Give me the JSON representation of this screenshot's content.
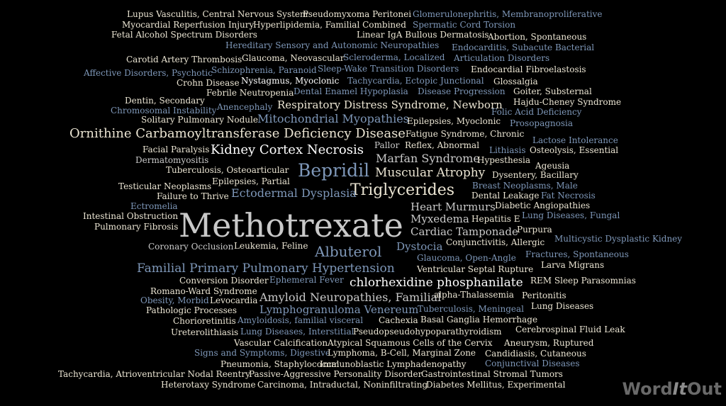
{
  "colors": {
    "background": "#000000",
    "cream": "#ebe5d3",
    "white": "#ffffff",
    "blue": "#7e97b8",
    "grey": "#c9c9c9"
  },
  "logo": {
    "part1": "Word",
    "part2": "It",
    "part3": "Out"
  },
  "words": [
    {
      "t": "Lupus Vasculitis, Central Nervous System",
      "c": "cream"
    },
    {
      "t": "Pseudomyxoma Peritonei",
      "c": "cream"
    },
    {
      "t": "Glomerulonephritis, Membranoproliferative",
      "c": "blue"
    },
    {
      "t": "Myocardial Reperfusion Injury",
      "c": "cream"
    },
    {
      "t": "Hyperlipidemia, Familial Combined",
      "c": "cream"
    },
    {
      "t": "Spermatic Cord Torsion",
      "c": "blue"
    },
    {
      "t": "Fetal Alcohol Spectrum Disorders",
      "c": "cream"
    },
    {
      "t": "Linear IgA Bullous Dermatosis",
      "c": "cream"
    },
    {
      "t": "Abortion, Spontaneous",
      "c": "cream"
    },
    {
      "t": "Hereditary Sensory and Autonomic Neuropathies",
      "c": "blue"
    },
    {
      "t": "Endocarditis, Subacute Bacterial",
      "c": "blue"
    },
    {
      "t": "Carotid Artery Thrombosis",
      "c": "cream"
    },
    {
      "t": "Glaucoma, Neovascular",
      "c": "cream"
    },
    {
      "t": "Scleroderma, Localized",
      "c": "blue"
    },
    {
      "t": "Articulation Disorders",
      "c": "blue"
    },
    {
      "t": "Affective Disorders, Psychotic",
      "c": "blue"
    },
    {
      "t": "Schizophrenia, Paranoid",
      "c": "blue"
    },
    {
      "t": "Sleep-Wake Transition Disorders",
      "c": "blue"
    },
    {
      "t": "Endocardial Fibroelastosis",
      "c": "cream"
    },
    {
      "t": "Crohn Disease",
      "c": "cream"
    },
    {
      "t": "Nystagmus, Myoclonic",
      "c": "white"
    },
    {
      "t": "Tachycardia, Ectopic Junctional",
      "c": "blue"
    },
    {
      "t": "Glossalgia",
      "c": "cream"
    },
    {
      "t": "Febrile Neutropenia",
      "c": "cream"
    },
    {
      "t": "Dental Enamel Hypoplasia",
      "c": "blue"
    },
    {
      "t": "Disease Progression",
      "c": "blue"
    },
    {
      "t": "Goiter, Substernal",
      "c": "cream"
    },
    {
      "t": "Dentin, Secondary",
      "c": "cream"
    },
    {
      "t": "Hajdu-Cheney Syndrome",
      "c": "cream"
    },
    {
      "t": "Anencephaly",
      "c": "blue"
    },
    {
      "t": "Respiratory Distress Syndrome, Newborn",
      "c": "cream"
    },
    {
      "t": "Chromosomal Instability",
      "c": "blue"
    },
    {
      "t": "Folic Acid Deficiency",
      "c": "blue"
    },
    {
      "t": "Mitochondrial Myopathies",
      "c": "blue"
    },
    {
      "t": "Solitary Pulmonary Nodule",
      "c": "cream"
    },
    {
      "t": "Epilepsies, Myoclonic",
      "c": "cream"
    },
    {
      "t": "Prosopagnosia",
      "c": "blue"
    },
    {
      "t": "Ornithine Carbamoyltransferase Deficiency Disease",
      "c": "cream"
    },
    {
      "t": "Fatigue Syndrome, Chronic",
      "c": "cream"
    },
    {
      "t": "Lactose Intolerance",
      "c": "blue"
    },
    {
      "t": "Pallor",
      "c": "grey"
    },
    {
      "t": "Reflex, Abnormal",
      "c": "cream"
    },
    {
      "t": "Facial Paralysis",
      "c": "cream"
    },
    {
      "t": "Kidney Cortex Necrosis",
      "c": "white"
    },
    {
      "t": "Lithiasis",
      "c": "blue"
    },
    {
      "t": "Osteolysis, Essential",
      "c": "cream"
    },
    {
      "t": "Dermatomyositis",
      "c": "grey"
    },
    {
      "t": "Marfan Syndrome",
      "c": "grey"
    },
    {
      "t": "Hypesthesia",
      "c": "cream"
    },
    {
      "t": "Ageusia",
      "c": "cream"
    },
    {
      "t": "Tuberculosis, Osteoarticular",
      "c": "cream"
    },
    {
      "t": "Bepridil",
      "c": "blue"
    },
    {
      "t": "Muscular Atrophy",
      "c": "cream"
    },
    {
      "t": "Dysentery, Bacillary",
      "c": "cream"
    },
    {
      "t": "Epilepsies, Partial",
      "c": "cream"
    },
    {
      "t": "Testicular Neoplasms",
      "c": "cream"
    },
    {
      "t": "Breast Neoplasms, Male",
      "c": "blue"
    },
    {
      "t": "Triglycerides",
      "c": "cream"
    },
    {
      "t": "Failure to Thrive",
      "c": "cream"
    },
    {
      "t": "Ectodermal Dysplasia",
      "c": "blue"
    },
    {
      "t": "Dental Leakage",
      "c": "cream"
    },
    {
      "t": "Fat Necrosis",
      "c": "blue"
    },
    {
      "t": "Ectromelia",
      "c": "blue"
    },
    {
      "t": "Diabetic Angiopathies",
      "c": "cream"
    },
    {
      "t": "Heart Murmurs",
      "c": "grey"
    },
    {
      "t": "Intestinal Obstruction",
      "c": "cream"
    },
    {
      "t": "Lung Diseases, Fungal",
      "c": "blue"
    },
    {
      "t": "Methotrexate",
      "c": "grey"
    },
    {
      "t": "Myxedema",
      "c": "grey"
    },
    {
      "t": "Hepatitis E",
      "c": "cream"
    },
    {
      "t": "Pulmonary Fibrosis",
      "c": "cream"
    },
    {
      "t": "Purpura",
      "c": "cream"
    },
    {
      "t": "Cardiac Tamponade",
      "c": "grey"
    },
    {
      "t": "Multicystic Dysplastic Kidney",
      "c": "blue"
    },
    {
      "t": "Conjunctivitis, Allergic",
      "c": "cream"
    },
    {
      "t": "Coronary Occlusion",
      "c": "grey"
    },
    {
      "t": "Leukemia, Feline",
      "c": "cream"
    },
    {
      "t": "Dystocia",
      "c": "blue"
    },
    {
      "t": "Albuterol",
      "c": "blue"
    },
    {
      "t": "Fractures, Spontaneous",
      "c": "blue"
    },
    {
      "t": "Glaucoma, Open-Angle",
      "c": "blue"
    },
    {
      "t": "Larva Migrans",
      "c": "cream"
    },
    {
      "t": "Familial Primary Pulmonary Hypertension",
      "c": "blue"
    },
    {
      "t": "Ventricular Septal Rupture",
      "c": "cream"
    },
    {
      "t": "Conversion Disorder",
      "c": "cream"
    },
    {
      "t": "Ephemeral Fever",
      "c": "blue"
    },
    {
      "t": "chlorhexidine phosphanilate",
      "c": "white"
    },
    {
      "t": "REM Sleep Parasomnias",
      "c": "cream"
    },
    {
      "t": "Romano-Ward Syndrome",
      "c": "cream"
    },
    {
      "t": "alpha-Thalassemia",
      "c": "cream"
    },
    {
      "t": "Peritonitis",
      "c": "cream"
    },
    {
      "t": "Obesity, Morbid",
      "c": "blue"
    },
    {
      "t": "Levocardia",
      "c": "cream"
    },
    {
      "t": "Amyloid Neuropathies, Familial",
      "c": "grey"
    },
    {
      "t": "Lung Diseases",
      "c": "cream"
    },
    {
      "t": "Pathologic Processes",
      "c": "cream"
    },
    {
      "t": "Lymphogranuloma Venereum",
      "c": "blue"
    },
    {
      "t": "Tuberculosis, Meningeal",
      "c": "blue"
    },
    {
      "t": "Chorioretinitis",
      "c": "cream"
    },
    {
      "t": "Amyloidosis, familial visceral",
      "c": "blue"
    },
    {
      "t": "Cachexia",
      "c": "cream"
    },
    {
      "t": "Basal Ganglia Hemorrhage",
      "c": "cream"
    },
    {
      "t": "Ureterolithiasis",
      "c": "cream"
    },
    {
      "t": "Lung Diseases, Interstitial",
      "c": "blue"
    },
    {
      "t": "Pseudopseudohypoparathyroidism",
      "c": "cream"
    },
    {
      "t": "Cerebrospinal Fluid Leak",
      "c": "cream"
    },
    {
      "t": "Vascular Calcification",
      "c": "cream"
    },
    {
      "t": "Atypical Squamous Cells of the Cervix",
      "c": "cream"
    },
    {
      "t": "Aneurysm, Ruptured",
      "c": "cream"
    },
    {
      "t": "Signs and Symptoms, Digestive",
      "c": "blue"
    },
    {
      "t": "Lymphoma, B-Cell, Marginal Zone",
      "c": "cream"
    },
    {
      "t": "Candidiasis, Cutaneous",
      "c": "cream"
    },
    {
      "t": "Pneumonia, Staphylococcal",
      "c": "cream"
    },
    {
      "t": "Immunoblastic Lymphadenopathy",
      "c": "cream"
    },
    {
      "t": "Conjunctival Diseases",
      "c": "blue"
    },
    {
      "t": "Tachycardia, Atrioventricular Nodal Reentry",
      "c": "cream"
    },
    {
      "t": "Passive-Aggressive Personality Disorder",
      "c": "cream"
    },
    {
      "t": "Gastrointestinal Stromal Tumors",
      "c": "cream"
    },
    {
      "t": "Heterotaxy Syndrome",
      "c": "cream"
    },
    {
      "t": "Carcinoma, Intraductal, Noninfiltrating",
      "c": "cream"
    },
    {
      "t": "Diabetes Mellitus, Experimental",
      "c": "cream"
    }
  ]
}
